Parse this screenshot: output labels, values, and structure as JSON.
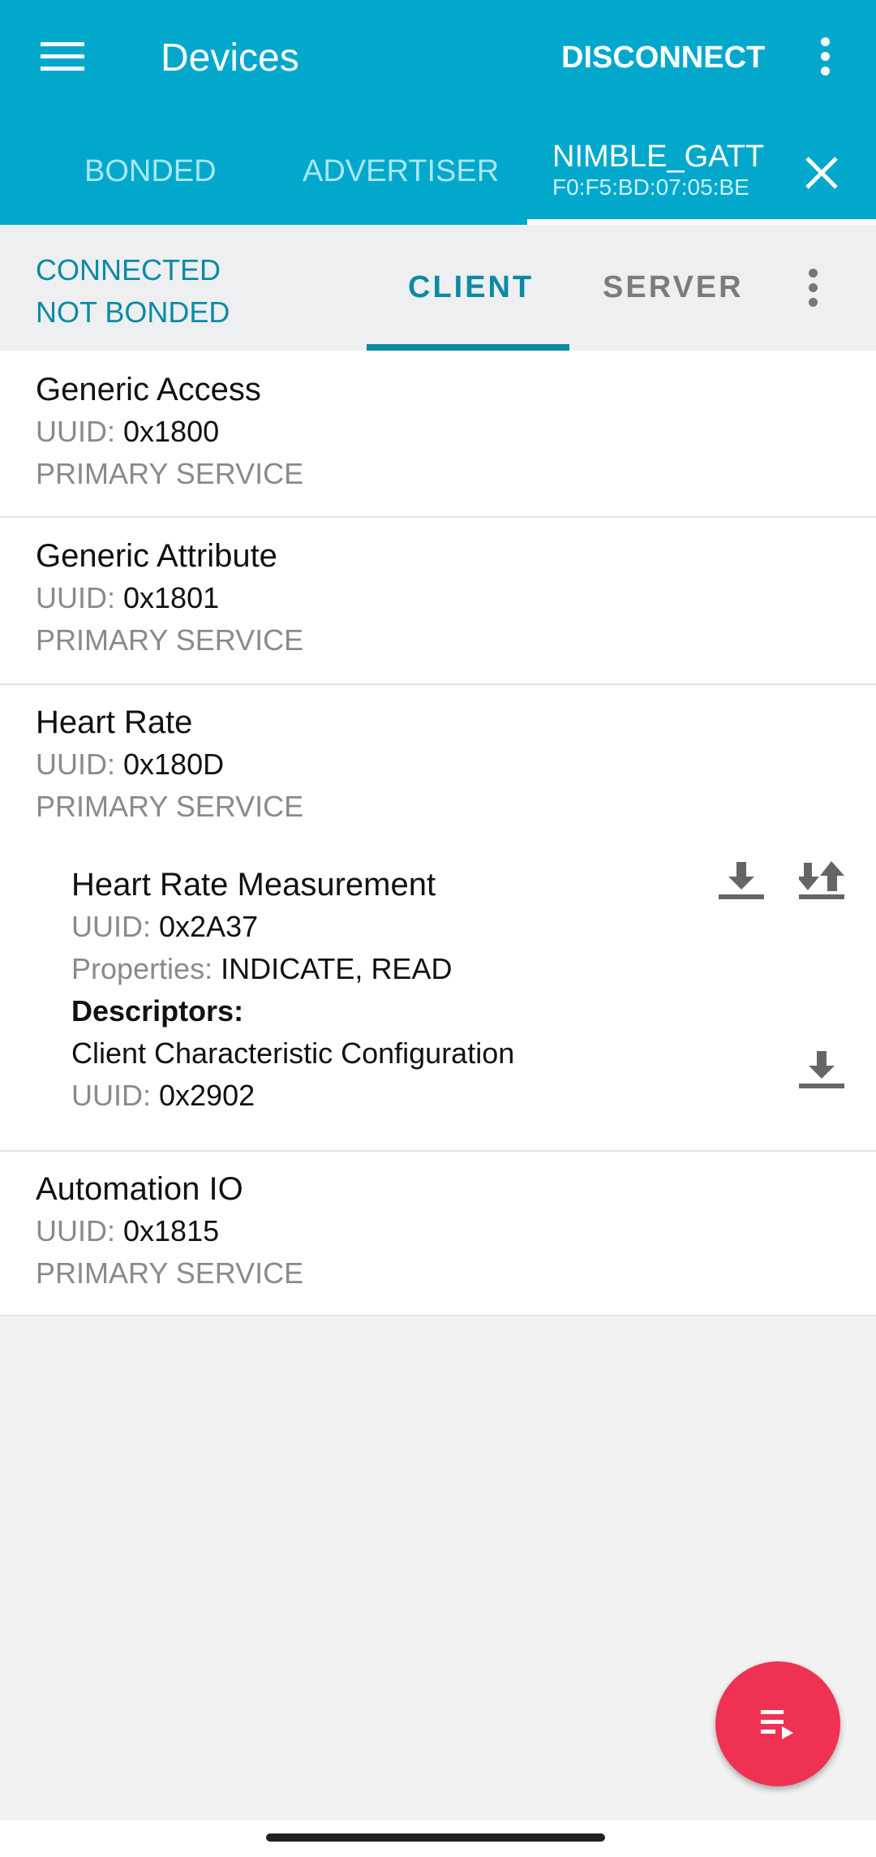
{
  "appbar": {
    "title": "Devices",
    "disconnect_label": "DISCONNECT",
    "menu_icon": "hamburger-icon",
    "more_icon": "more-vert-icon"
  },
  "tabs": [
    {
      "label": "BONDED"
    },
    {
      "label": "ADVERTISER"
    },
    {
      "label": "NIMBLE_GATT",
      "sub": "F0:F5:BD:07:05:BE",
      "selected": true
    }
  ],
  "status": {
    "line1": "CONNECTED",
    "line2": "NOT BONDED"
  },
  "subtabs": [
    {
      "label": "CLIENT",
      "selected": true
    },
    {
      "label": "SERVER"
    }
  ],
  "colors": {
    "primary": "#01a8cc",
    "accent": "#0b8aa4",
    "fab": "#ef3253"
  },
  "uuid_label": "UUID:",
  "services": [
    {
      "name": "Generic Access",
      "uuid": "0x1800",
      "type": "PRIMARY SERVICE"
    },
    {
      "name": "Generic Attribute",
      "uuid": "0x1801",
      "type": "PRIMARY SERVICE"
    },
    {
      "name": "Heart Rate",
      "uuid": "0x180D",
      "type": "PRIMARY SERVICE",
      "characteristic": {
        "name": "Heart Rate Measurement",
        "uuid": "0x2A37",
        "properties_label": "Properties:",
        "properties": "INDICATE, READ",
        "descriptors_label": "Descriptors:",
        "descriptor": {
          "name": "Client Characteristic Configuration",
          "uuid": "0x2902"
        }
      }
    },
    {
      "name": "Automation IO",
      "uuid": "0x1815",
      "type": "PRIMARY SERVICE"
    }
  ]
}
